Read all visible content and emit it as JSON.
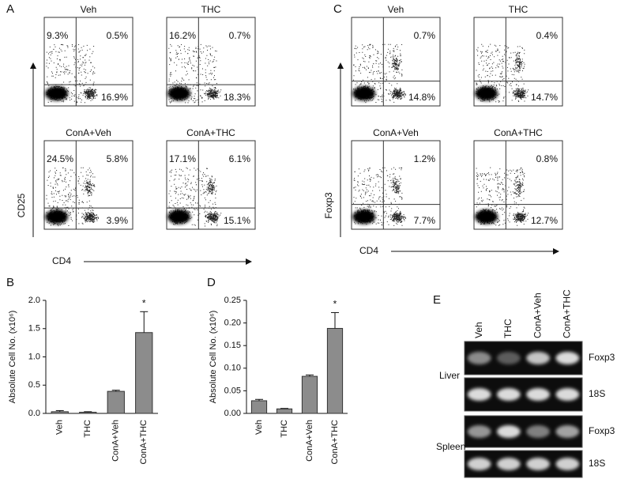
{
  "chart_data": [
    {
      "type": "bar",
      "panel": "B",
      "y_label": "Absolute Cell No. (x10⁶)",
      "categories": [
        "Veh",
        "THC",
        "ConA+Veh",
        "ConA+THC"
      ],
      "values": [
        0.03,
        0.02,
        0.39,
        1.43
      ],
      "errors": [
        0.02,
        0.01,
        0.02,
        0.37
      ],
      "color": "#8c8c8c",
      "ylim": [
        0,
        2
      ],
      "yticks": [
        {
          "value": 0,
          "label": "0.0"
        },
        0.5,
        {
          "value": 1,
          "label": "1.0"
        },
        1.5,
        {
          "value": 2,
          "label": "2.0"
        }
      ],
      "annotations": [
        {
          "category": "ConA+THC",
          "text": "*"
        }
      ]
    },
    {
      "type": "bar",
      "panel": "D",
      "y_label": "Absolute Cell No. (x10⁶)",
      "categories": [
        "Veh",
        "THC",
        "ConA+Veh",
        "ConA+THC"
      ],
      "values": [
        0.028,
        0.01,
        0.082,
        0.188
      ],
      "errors": [
        0.003,
        0.001,
        0.003,
        0.035
      ],
      "color": "#8c8c8c",
      "ylim": [
        0,
        0.25
      ],
      "yticks": [
        {
          "value": 0,
          "label": "0.00"
        },
        0.05,
        {
          "value": 0.1,
          "label": "0.10"
        },
        0.15,
        {
          "value": 0.2,
          "label": "0.20"
        },
        0.25
      ],
      "annotations": [
        {
          "category": "ConA+THC",
          "text": "*"
        }
      ]
    }
  ],
  "flow_a": {
    "panel": "A",
    "y_axis": "CD25",
    "x_axis": "CD4",
    "plots": [
      {
        "title": "Veh",
        "upper_left": "9.3%",
        "upper_right": "0.5%",
        "lower_right": "16.9%"
      },
      {
        "title": "THC",
        "upper_left": "16.2%",
        "upper_right": "0.7%",
        "lower_right": "18.3%"
      },
      {
        "title": "ConA+Veh",
        "upper_left": "24.5%",
        "upper_right": "5.8%",
        "lower_right": "3.9%"
      },
      {
        "title": "ConA+THC",
        "upper_left": "17.1%",
        "upper_right": "6.1%",
        "lower_right": "15.1%"
      }
    ]
  },
  "flow_c": {
    "panel": "C",
    "y_axis": "Foxp3",
    "x_axis": "CD4",
    "plots": [
      {
        "title": "Veh",
        "upper_right": "0.7%",
        "lower_right": "14.8%"
      },
      {
        "title": "THC",
        "upper_right": "0.4%",
        "lower_right": "14.7%"
      },
      {
        "title": "ConA+Veh",
        "upper_right": "1.2%",
        "lower_right": "7.7%"
      },
      {
        "title": "ConA+THC",
        "upper_right": "0.8%",
        "lower_right": "12.7%"
      }
    ]
  },
  "gel": {
    "panel": "E",
    "lanes": [
      "Veh",
      "THC",
      "ConA+Veh",
      "ConA+THC"
    ],
    "tissues": [
      "Liver",
      "Spleen"
    ],
    "rows": [
      "Foxp3",
      "18S",
      "Foxp3",
      "18S"
    ]
  }
}
